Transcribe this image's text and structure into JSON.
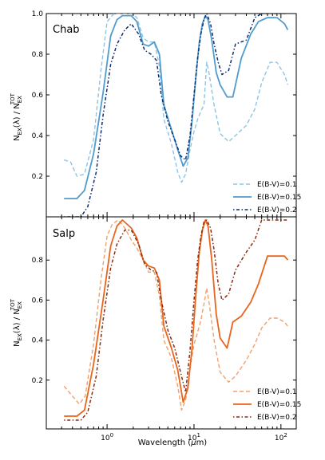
{
  "chart_data": [
    {
      "type": "line",
      "panel_label": "Chab",
      "ylabel": "N_EX(λ) / N_EX^TOT",
      "xlabel": "",
      "xscale": "log",
      "xlim": [
        0.2,
        150
      ],
      "ylim": [
        0.0,
        1.0
      ],
      "yticks": [
        "0.2",
        "0.4",
        "0.6",
        "0.8",
        "1.0"
      ],
      "legend_location": "lower right",
      "series": [
        {
          "name": "E(B-V)=0.1",
          "style": "dashed",
          "color": "#8ec3e6",
          "x": [
            0.32,
            0.38,
            0.45,
            0.55,
            0.7,
            0.85,
            1.0,
            1.2,
            1.4,
            1.6,
            1.9,
            2.2,
            2.6,
            3.0,
            3.5,
            4.0,
            4.5,
            5.5,
            6.5,
            7.2,
            8.0,
            9.0,
            10.0,
            11.0,
            12.0,
            13.0,
            14.0,
            15.0,
            17.0,
            20.0,
            25.0,
            30.0,
            40.0,
            50.0,
            60.0,
            75.0,
            90.0,
            110.0,
            120.0
          ],
          "y": [
            0.28,
            0.27,
            0.2,
            0.21,
            0.38,
            0.72,
            0.96,
            1.0,
            1.0,
            1.0,
            1.0,
            0.98,
            0.88,
            0.86,
            0.86,
            0.74,
            0.48,
            0.36,
            0.22,
            0.17,
            0.21,
            0.33,
            0.42,
            0.48,
            0.52,
            0.55,
            0.76,
            0.7,
            0.55,
            0.41,
            0.37,
            0.4,
            0.45,
            0.53,
            0.66,
            0.76,
            0.76,
            0.7,
            0.65
          ]
        },
        {
          "name": "E(B-V)=0.15",
          "style": "solid",
          "color": "#4f9ccd",
          "x": [
            0.32,
            0.45,
            0.55,
            0.7,
            0.9,
            1.1,
            1.3,
            1.5,
            1.9,
            2.2,
            2.6,
            3.0,
            3.5,
            4.0,
            4.5,
            5.5,
            6.5,
            7.5,
            8.5,
            9.5,
            10.5,
            11.5,
            12.5,
            13.5,
            14.5,
            16.0,
            18.0,
            20.0,
            24.0,
            28.0,
            35.0,
            45.0,
            55.0,
            70.0,
            90.0,
            110.0,
            120.0
          ],
          "y": [
            0.09,
            0.09,
            0.13,
            0.31,
            0.61,
            0.89,
            0.97,
            0.99,
            0.99,
            0.96,
            0.85,
            0.84,
            0.86,
            0.8,
            0.55,
            0.43,
            0.33,
            0.25,
            0.29,
            0.47,
            0.69,
            0.86,
            0.95,
            0.99,
            0.97,
            0.87,
            0.71,
            0.65,
            0.59,
            0.59,
            0.78,
            0.9,
            0.96,
            0.98,
            0.98,
            0.95,
            0.92
          ]
        },
        {
          "name": "E(B-V)=0.2",
          "style": "dashdot",
          "color": "#0d2b6e",
          "x": [
            0.32,
            0.5,
            0.6,
            0.75,
            0.9,
            1.1,
            1.3,
            1.6,
            1.9,
            2.3,
            2.7,
            3.2,
            3.7,
            4.2,
            5.0,
            6.0,
            7.0,
            8.0,
            9.0,
            10.0,
            11.0,
            12.0,
            13.0,
            14.0,
            15.5,
            17.0,
            19.0,
            21.0,
            25.0,
            30.0,
            40.0,
            50.0,
            60.0,
            80.0,
            100.0,
            120.0
          ],
          "y": [
            0.0,
            0.0,
            0.05,
            0.22,
            0.5,
            0.75,
            0.85,
            0.92,
            0.95,
            0.9,
            0.82,
            0.8,
            0.77,
            0.6,
            0.47,
            0.38,
            0.3,
            0.28,
            0.4,
            0.6,
            0.78,
            0.9,
            0.97,
            1.0,
            0.95,
            0.85,
            0.76,
            0.7,
            0.72,
            0.85,
            0.87,
            0.98,
            1.0,
            1.0,
            1.0,
            1.0
          ]
        }
      ]
    },
    {
      "type": "line",
      "panel_label": "Salp",
      "ylabel": "N_EX(λ) / N_EX^TOT",
      "xlabel": "Wavelength (μm)",
      "xscale": "log",
      "xlim": [
        0.2,
        150
      ],
      "ylim": [
        0.0,
        1.0
      ],
      "yticks": [
        "0.2",
        "0.4",
        "0.6",
        "0.8"
      ],
      "xticks": [
        "10^0",
        "10^1",
        "10^2"
      ],
      "legend_location": "lower right",
      "series": [
        {
          "name": "E(B-V)=0.1",
          "style": "dashed",
          "color": "#f2a06a",
          "x": [
            0.32,
            0.4,
            0.48,
            0.56,
            0.7,
            0.85,
            1.0,
            1.15,
            1.35,
            1.6,
            1.9,
            2.2,
            2.6,
            3.0,
            3.5,
            4.0,
            4.5,
            5.5,
            6.5,
            7.2,
            8.0,
            9.0,
            10.0,
            11.0,
            12.0,
            13.0,
            14.0,
            15.0,
            17.0,
            20.0,
            25.0,
            30.0,
            40.0,
            50.0,
            60.0,
            75.0,
            90.0,
            110.0,
            120.0
          ],
          "y": [
            0.17,
            0.12,
            0.08,
            0.12,
            0.38,
            0.7,
            0.92,
            0.98,
            1.0,
            0.96,
            0.9,
            0.86,
            0.8,
            0.74,
            0.74,
            0.62,
            0.4,
            0.31,
            0.17,
            0.05,
            0.1,
            0.26,
            0.38,
            0.44,
            0.5,
            0.58,
            0.66,
            0.58,
            0.4,
            0.24,
            0.19,
            0.22,
            0.3,
            0.38,
            0.46,
            0.51,
            0.51,
            0.49,
            0.47
          ]
        },
        {
          "name": "E(B-V)=0.15",
          "style": "solid",
          "color": "#e8651e",
          "x": [
            0.32,
            0.45,
            0.55,
            0.7,
            0.9,
            1.1,
            1.3,
            1.5,
            1.9,
            2.2,
            2.6,
            3.0,
            3.5,
            4.0,
            4.5,
            5.5,
            6.5,
            7.5,
            8.5,
            9.5,
            10.5,
            11.5,
            12.5,
            13.5,
            14.5,
            16.0,
            18.0,
            20.0,
            24.0,
            28.0,
            35.0,
            45.0,
            55.0,
            70.0,
            90.0,
            110.0,
            120.0
          ],
          "y": [
            0.02,
            0.02,
            0.05,
            0.28,
            0.6,
            0.87,
            0.97,
            1.0,
            0.96,
            0.91,
            0.8,
            0.77,
            0.76,
            0.7,
            0.47,
            0.36,
            0.25,
            0.09,
            0.16,
            0.36,
            0.63,
            0.84,
            0.95,
            1.0,
            0.97,
            0.8,
            0.53,
            0.41,
            0.36,
            0.49,
            0.52,
            0.59,
            0.68,
            0.82,
            0.82,
            0.82,
            0.8
          ]
        },
        {
          "name": "E(B-V)=0.2",
          "style": "dashdot",
          "color": "#8b2a0f",
          "x": [
            0.32,
            0.5,
            0.6,
            0.75,
            0.9,
            1.1,
            1.3,
            1.6,
            1.9,
            2.3,
            2.7,
            3.2,
            3.7,
            4.2,
            5.0,
            6.0,
            7.0,
            8.0,
            9.0,
            10.0,
            11.0,
            12.0,
            13.0,
            14.0,
            15.5,
            17.0,
            19.0,
            21.0,
            25.0,
            30.0,
            40.0,
            50.0,
            60.0,
            80.0,
            100.0,
            120.0
          ],
          "y": [
            0.0,
            0.0,
            0.04,
            0.22,
            0.5,
            0.76,
            0.88,
            0.95,
            0.95,
            0.88,
            0.78,
            0.75,
            0.74,
            0.6,
            0.45,
            0.36,
            0.24,
            0.14,
            0.35,
            0.6,
            0.8,
            0.92,
            0.99,
            1.0,
            0.96,
            0.85,
            0.68,
            0.6,
            0.63,
            0.75,
            0.84,
            0.9,
            1.0,
            1.0,
            1.0,
            1.0
          ]
        }
      ]
    }
  ]
}
